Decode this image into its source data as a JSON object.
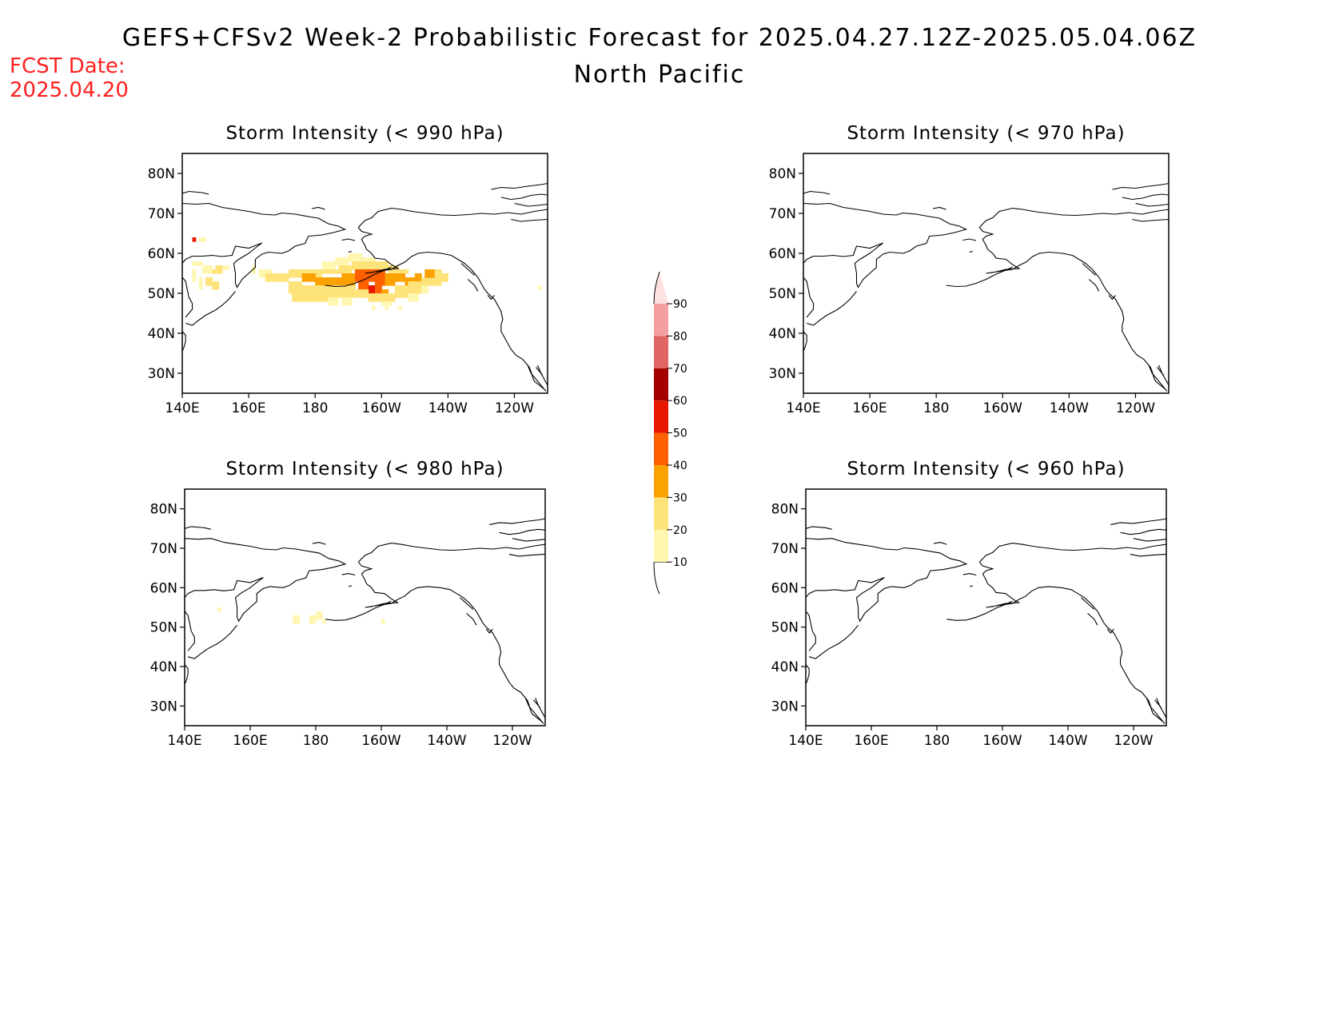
{
  "header": {
    "title": "GEFS+CFSv2 Week-2 Probabilistic Forecast for 2025.04.27.12Z-2025.05.04.06Z",
    "region": "North Pacific",
    "fcst_date_label": "FCST Date:",
    "fcst_date": "2025.04.20"
  },
  "colors": {
    "fcst_date": "#ff2020",
    "coastline": "#000000"
  },
  "chart_data": {
    "type": "heatmap",
    "lon_ticks": [
      "140E",
      "160E",
      "180",
      "160W",
      "140W",
      "120W"
    ],
    "lat_ticks": [
      "80N",
      "70N",
      "60N",
      "50N",
      "40N",
      "30N"
    ],
    "lon_range": [
      140,
      250
    ],
    "lat_range": [
      25,
      85
    ],
    "colorbar": {
      "levels": [
        10,
        20,
        30,
        40,
        50,
        60,
        70,
        80,
        90
      ],
      "labels": [
        "10",
        "20",
        "30",
        "40",
        "50",
        "60",
        "70",
        "80",
        "90"
      ],
      "colors": [
        "#fff6b0",
        "#fde37a",
        "#fba100",
        "#ff6000",
        "#e81800",
        "#a50000",
        "#e06666",
        "#f5a0a0",
        "#fde0e0"
      ]
    },
    "panels": [
      {
        "title": "Storm Intensity (< 990 hPa)",
        "cells": [
          [
            143,
            63,
            1,
            1,
            50
          ],
          [
            145,
            63,
            1,
            1,
            10
          ],
          [
            146,
            63,
            1,
            1,
            10
          ],
          [
            143,
            57,
            1,
            1,
            10
          ],
          [
            144,
            57,
            1,
            1,
            10
          ],
          [
            145,
            57,
            1,
            1,
            10
          ],
          [
            146,
            55,
            3,
            2,
            10
          ],
          [
            149,
            55,
            1,
            1,
            20
          ],
          [
            150,
            55,
            2,
            2,
            20
          ],
          [
            152,
            56,
            2,
            1,
            10
          ],
          [
            143,
            53,
            1,
            3,
            10
          ],
          [
            145,
            51,
            1,
            3,
            10
          ],
          [
            147,
            52,
            2,
            2,
            20
          ],
          [
            149,
            51,
            2,
            2,
            20
          ],
          [
            161,
            55,
            1,
            2,
            10
          ],
          [
            163,
            54,
            4,
            2,
            10
          ],
          [
            165,
            53,
            2,
            2,
            20
          ],
          [
            167,
            53,
            2,
            2,
            20
          ],
          [
            169,
            53,
            3,
            2,
            20
          ],
          [
            172,
            54,
            3,
            2,
            20
          ],
          [
            175,
            54,
            3,
            2,
            20
          ],
          [
            178,
            54,
            4,
            2,
            20
          ],
          [
            182,
            56,
            4,
            2,
            10
          ],
          [
            186,
            57,
            4,
            2,
            10
          ],
          [
            190,
            58,
            4,
            2,
            10
          ],
          [
            194,
            58,
            4,
            1,
            10
          ],
          [
            182,
            55,
            5,
            1,
            20
          ],
          [
            187,
            55,
            4,
            2,
            20
          ],
          [
            191,
            56,
            4,
            2,
            20
          ],
          [
            195,
            56,
            4,
            2,
            20
          ],
          [
            199,
            56,
            3,
            2,
            20
          ],
          [
            202,
            55,
            3,
            2,
            20
          ],
          [
            205,
            55,
            3,
            1,
            20
          ],
          [
            176,
            53,
            4,
            2,
            30
          ],
          [
            180,
            52,
            4,
            2,
            30
          ],
          [
            184,
            52,
            4,
            2,
            30
          ],
          [
            188,
            52,
            4,
            3,
            30
          ],
          [
            192,
            53,
            3,
            3,
            40
          ],
          [
            195,
            53,
            3,
            3,
            40
          ],
          [
            198,
            52,
            3,
            4,
            40
          ],
          [
            201,
            52,
            3,
            3,
            30
          ],
          [
            204,
            53,
            3,
            2,
            30
          ],
          [
            207,
            52,
            3,
            2,
            30
          ],
          [
            210,
            53,
            2,
            2,
            30
          ],
          [
            193,
            51,
            3,
            2,
            40
          ],
          [
            196,
            50,
            2,
            2,
            50
          ],
          [
            198,
            50,
            2,
            2,
            40
          ],
          [
            200,
            49,
            2,
            2,
            30
          ],
          [
            172,
            50,
            4,
            3,
            20
          ],
          [
            176,
            50,
            4,
            2,
            20
          ],
          [
            180,
            50,
            4,
            2,
            20
          ],
          [
            184,
            49,
            4,
            3,
            20
          ],
          [
            188,
            49,
            4,
            3,
            20
          ],
          [
            192,
            49,
            4,
            2,
            20
          ],
          [
            196,
            48,
            4,
            2,
            20
          ],
          [
            200,
            48,
            4,
            2,
            20
          ],
          [
            204,
            49,
            4,
            3,
            20
          ],
          [
            208,
            50,
            4,
            3,
            20
          ],
          [
            212,
            52,
            3,
            2,
            20
          ],
          [
            215,
            52,
            3,
            2,
            20
          ],
          [
            173,
            48,
            3,
            2,
            20
          ],
          [
            176,
            48,
            4,
            2,
            20
          ],
          [
            180,
            48,
            4,
            2,
            20
          ],
          [
            184,
            47,
            3,
            2,
            10
          ],
          [
            188,
            47,
            3,
            2,
            10
          ],
          [
            200,
            47,
            3,
            1,
            10
          ],
          [
            208,
            48,
            3,
            2,
            10
          ],
          [
            212,
            50,
            2,
            2,
            10
          ],
          [
            197,
            46,
            1,
            1,
            10
          ],
          [
            201,
            46,
            1,
            1,
            10
          ],
          [
            205,
            46,
            1,
            1,
            10
          ],
          [
            213,
            54,
            3,
            2,
            30
          ],
          [
            216,
            53,
            2,
            3,
            20
          ],
          [
            218,
            53,
            2,
            2,
            20
          ],
          [
            247,
            51,
            1,
            1,
            10
          ]
        ]
      },
      {
        "title": "Storm Intensity (< 970 hPa)",
        "cells": []
      },
      {
        "title": "Storm Intensity (< 980 hPa)",
        "cells": [
          [
            150,
            54,
            1,
            1,
            10
          ],
          [
            173,
            51,
            2,
            2,
            10
          ],
          [
            178,
            51,
            2,
            2,
            10
          ],
          [
            180,
            52,
            2,
            2,
            10
          ],
          [
            182,
            51,
            1,
            1,
            10
          ],
          [
            200,
            51,
            1,
            1,
            10
          ]
        ]
      },
      {
        "title": "Storm Intensity (< 960 hPa)",
        "cells": []
      }
    ]
  }
}
